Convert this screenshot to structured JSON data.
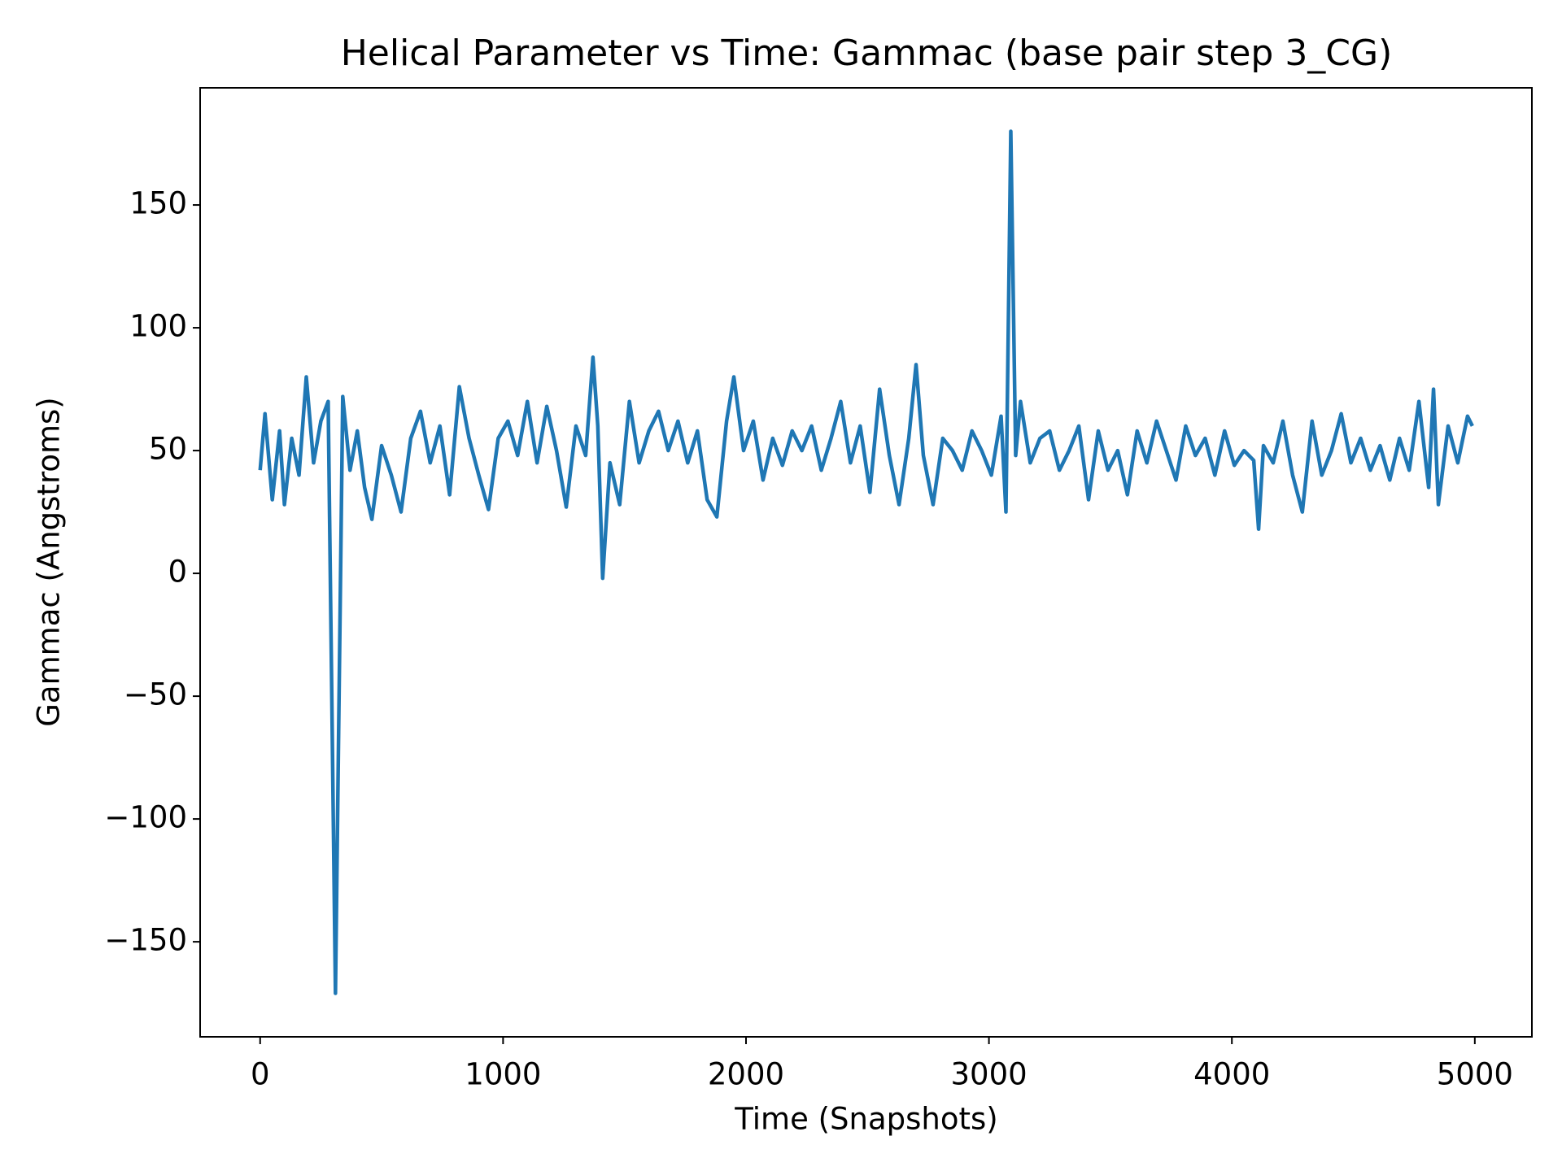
{
  "chart_data": {
    "type": "line",
    "title": "Helical Parameter vs Time: Gammac (base pair step 3_CG)",
    "x_label": "Time (Snapshots)",
    "y_label": "Gammac (Angstroms)",
    "x": [
      0,
      20,
      50,
      80,
      100,
      130,
      160,
      190,
      220,
      250,
      280,
      310,
      340,
      370,
      400,
      430,
      460,
      500,
      540,
      580,
      620,
      660,
      700,
      740,
      780,
      820,
      860,
      900,
      940,
      980,
      1020,
      1060,
      1100,
      1140,
      1180,
      1220,
      1260,
      1300,
      1340,
      1370,
      1390,
      1410,
      1440,
      1480,
      1520,
      1560,
      1600,
      1640,
      1680,
      1720,
      1760,
      1800,
      1840,
      1880,
      1920,
      1950,
      1990,
      2030,
      2070,
      2110,
      2150,
      2190,
      2230,
      2270,
      2310,
      2350,
      2390,
      2430,
      2470,
      2510,
      2550,
      2590,
      2630,
      2670,
      2700,
      2730,
      2770,
      2810,
      2850,
      2890,
      2930,
      2970,
      3010,
      3050,
      3070,
      3090,
      3110,
      3130,
      3170,
      3210,
      3250,
      3290,
      3330,
      3370,
      3410,
      3450,
      3490,
      3530,
      3570,
      3610,
      3650,
      3690,
      3730,
      3770,
      3810,
      3850,
      3890,
      3930,
      3970,
      4010,
      4050,
      4090,
      4110,
      4130,
      4170,
      4210,
      4250,
      4290,
      4330,
      4370,
      4410,
      4450,
      4490,
      4530,
      4570,
      4610,
      4650,
      4690,
      4730,
      4770,
      4810,
      4830,
      4850,
      4890,
      4930,
      4970,
      4990
    ],
    "series": [
      {
        "name": "Gammac",
        "color": "#1f77b4",
        "values": [
          42,
          65,
          30,
          58,
          28,
          55,
          40,
          80,
          45,
          62,
          70,
          -171,
          72,
          42,
          58,
          35,
          22,
          52,
          40,
          25,
          55,
          66,
          45,
          60,
          32,
          76,
          55,
          40,
          26,
          55,
          62,
          48,
          70,
          45,
          68,
          50,
          27,
          60,
          48,
          88,
          60,
          -2,
          45,
          28,
          70,
          45,
          58,
          66,
          50,
          62,
          45,
          58,
          30,
          23,
          62,
          80,
          50,
          62,
          38,
          55,
          44,
          58,
          50,
          60,
          42,
          55,
          70,
          45,
          60,
          33,
          75,
          48,
          28,
          55,
          85,
          48,
          28,
          55,
          50,
          42,
          58,
          50,
          40,
          64,
          25,
          180,
          48,
          70,
          45,
          55,
          58,
          42,
          50,
          60,
          30,
          58,
          42,
          50,
          32,
          58,
          45,
          62,
          50,
          38,
          60,
          48,
          55,
          40,
          58,
          44,
          50,
          46,
          18,
          52,
          45,
          62,
          40,
          25,
          62,
          40,
          50,
          65,
          45,
          55,
          42,
          52,
          38,
          55,
          42,
          70,
          35,
          75,
          28,
          60,
          45,
          64,
          60
        ]
      }
    ],
    "xlim": [
      -247,
      5235
    ],
    "ylim": [
      -188.7,
      197.7
    ],
    "xticks": [
      0,
      1000,
      2000,
      3000,
      4000,
      5000
    ],
    "yticks": [
      {
        "value": -150,
        "label": "−150"
      },
      {
        "value": -100,
        "label": "−100"
      },
      {
        "value": -50,
        "label": "−50"
      },
      0,
      50,
      100,
      150
    ]
  }
}
